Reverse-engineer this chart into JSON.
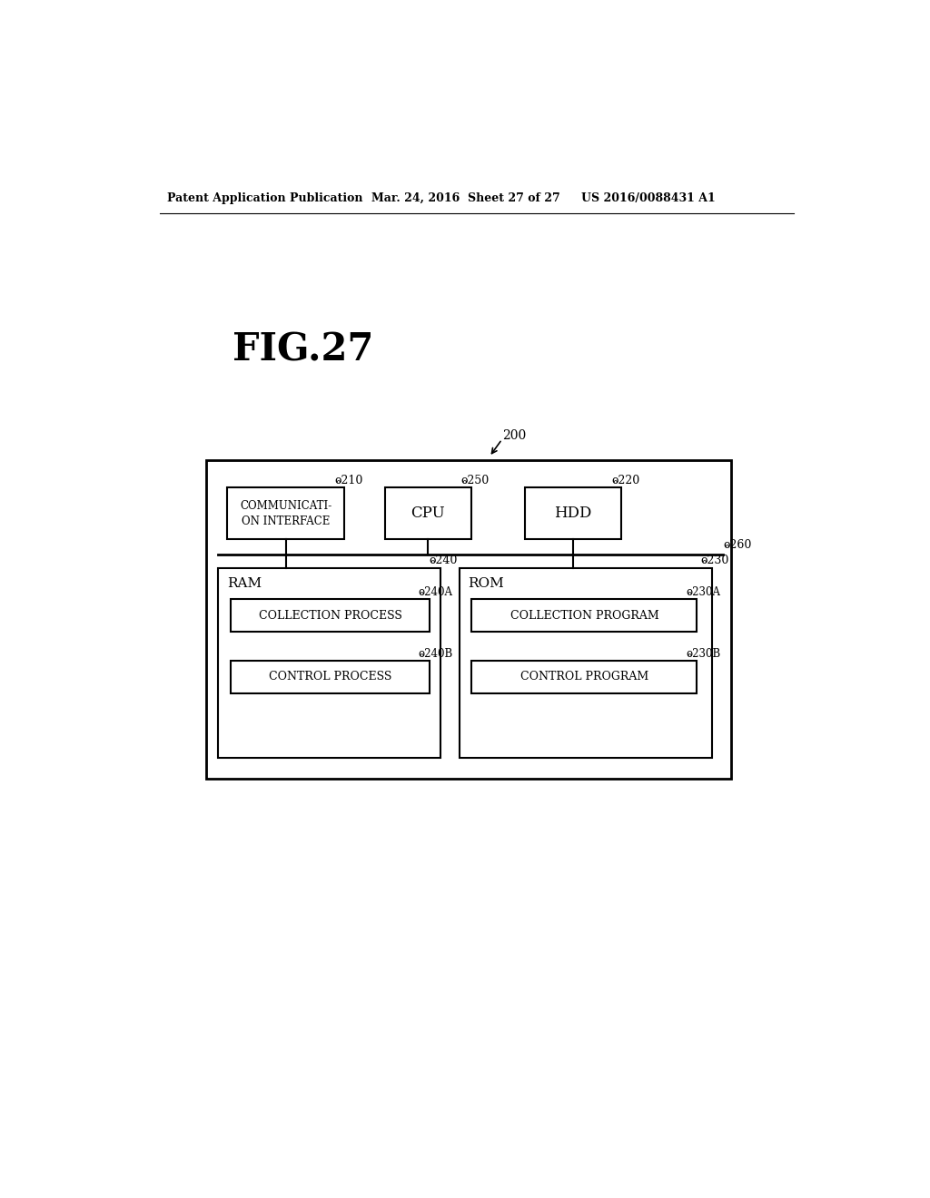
{
  "bg_color": "#ffffff",
  "header_left": "Patent Application Publication",
  "header_mid": "Mar. 24, 2016  Sheet 27 of 27",
  "header_right": "US 2016/0088431 A1",
  "fig_label": "FIG.27",
  "box_comm": "COMMUNICATI-\nON INTERFACE",
  "box_cpu": "CPU",
  "box_hdd": "HDD",
  "box_ram": "RAM",
  "box_rom": "ROM",
  "box_coll_proc": "COLLECTION PROCESS",
  "box_ctrl_proc": "CONTROL PROCESS",
  "box_coll_prog": "COLLECTION PROGRAM",
  "box_ctrl_prog": "CONTROL PROGRAM",
  "lbl_200": "200",
  "lbl_210": "210",
  "lbl_220": "220",
  "lbl_250": "250",
  "lbl_240": "240",
  "lbl_230": "230",
  "lbl_260": "260",
  "lbl_240A": "240A",
  "lbl_240B": "240B",
  "lbl_230A": "230A",
  "lbl_230B": "230B"
}
